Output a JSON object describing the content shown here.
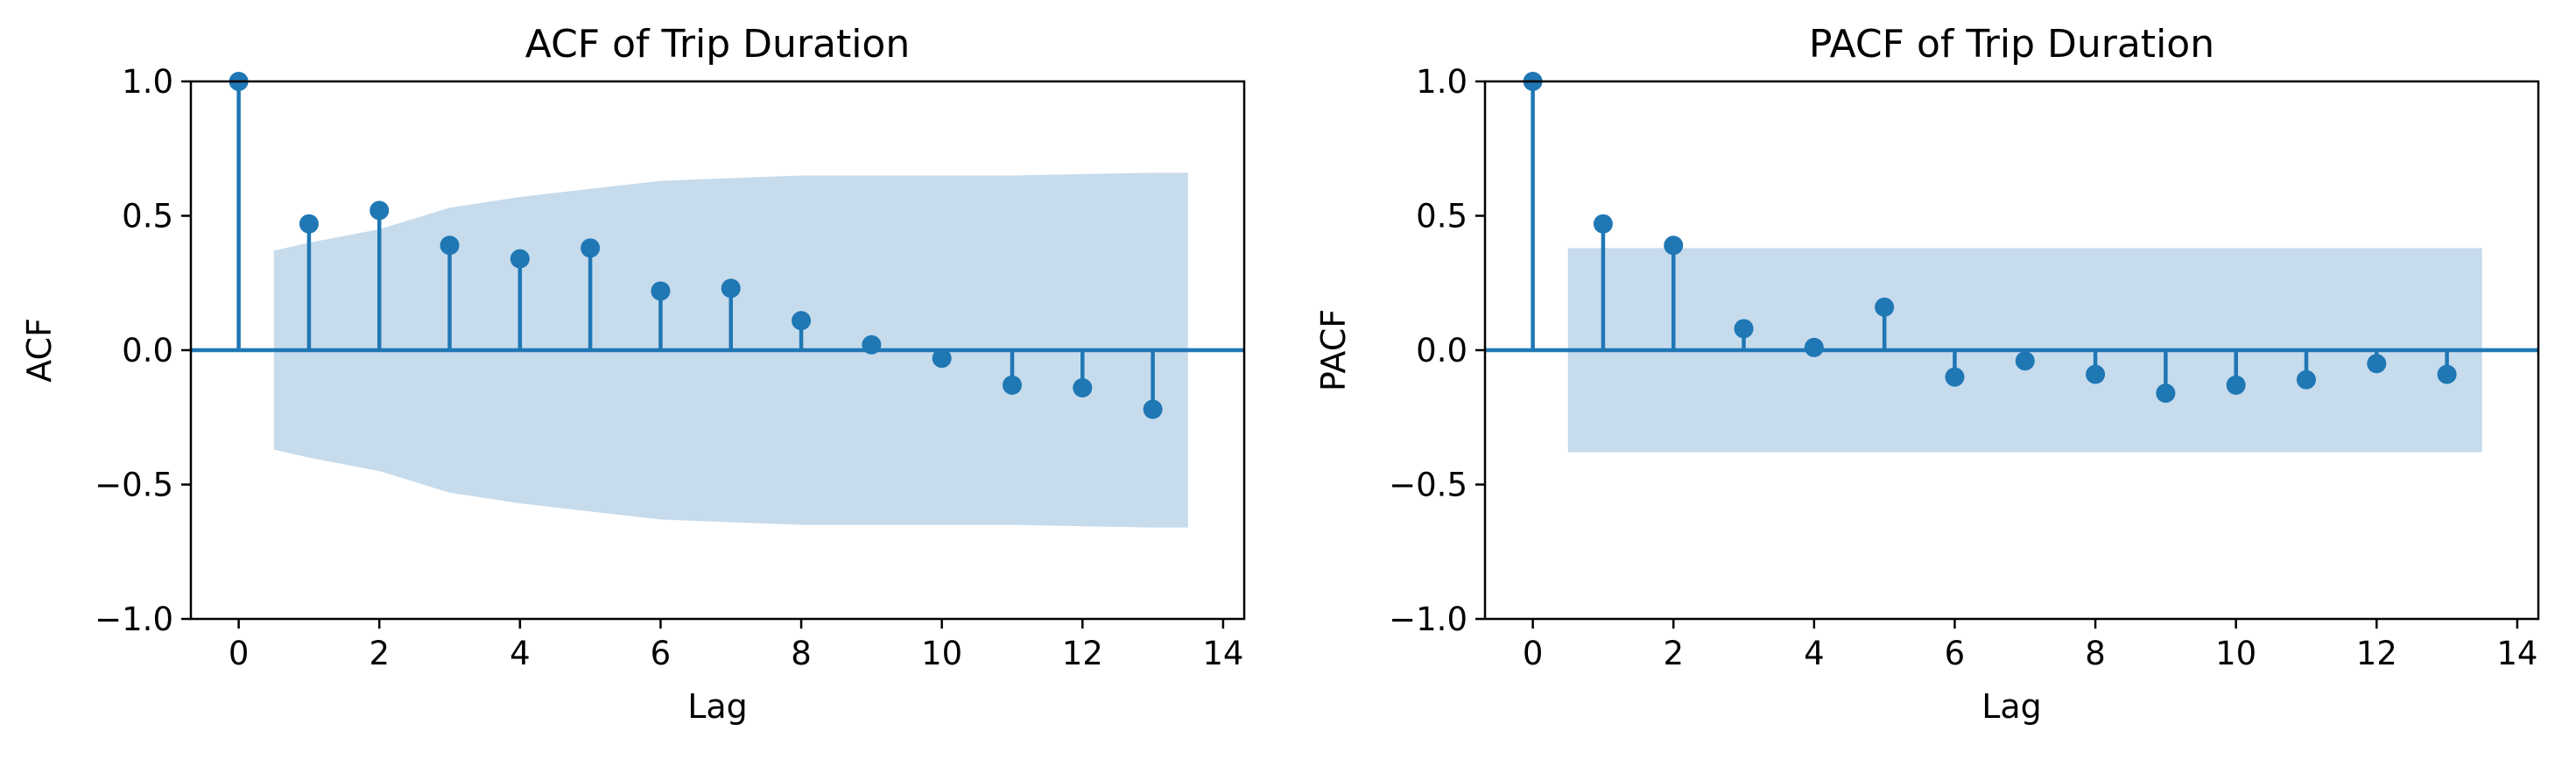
{
  "colors": {
    "series": "#1f77b4",
    "band": "#c6dbec",
    "axis": "#000000"
  },
  "chart_data": [
    {
      "type": "stem",
      "title": "ACF of Trip Duration",
      "xlabel": "Lag",
      "ylabel": "ACF",
      "xlim": [
        -0.68,
        14.3
      ],
      "ylim": [
        -1.0,
        1.0
      ],
      "xticks": [
        0,
        2,
        4,
        6,
        8,
        10,
        12,
        14
      ],
      "yticks": [
        -1.0,
        -0.5,
        0.0,
        0.5,
        1.0
      ],
      "xtick_labels": [
        "0",
        "2",
        "4",
        "6",
        "8",
        "10",
        "12",
        "14"
      ],
      "ytick_labels": [
        "−1.0",
        "−0.5",
        "0.0",
        "0.5",
        "1.0"
      ],
      "grid": false,
      "x": [
        0,
        1,
        2,
        3,
        4,
        5,
        6,
        7,
        8,
        9,
        10,
        11,
        12,
        13
      ],
      "values": [
        1.0,
        0.47,
        0.52,
        0.39,
        0.34,
        0.38,
        0.22,
        0.23,
        0.11,
        0.02,
        -0.03,
        -0.13,
        -0.14,
        -0.22
      ],
      "confidence_band": {
        "x": [
          0.5,
          1,
          2,
          3,
          4,
          5,
          6,
          7,
          8,
          9,
          10,
          11,
          12,
          13,
          13.5
        ],
        "upper": [
          0.37,
          0.4,
          0.45,
          0.53,
          0.57,
          0.6,
          0.63,
          0.64,
          0.65,
          0.65,
          0.65,
          0.65,
          0.655,
          0.66,
          0.66
        ],
        "lower": [
          -0.37,
          -0.4,
          -0.45,
          -0.53,
          -0.57,
          -0.6,
          -0.63,
          -0.64,
          -0.65,
          -0.65,
          -0.65,
          -0.65,
          -0.655,
          -0.66,
          -0.66
        ]
      }
    },
    {
      "type": "stem",
      "title": "PACF of Trip Duration",
      "xlabel": "Lag",
      "ylabel": "PACF",
      "xlim": [
        -0.68,
        14.3
      ],
      "ylim": [
        -1.0,
        1.0
      ],
      "xticks": [
        0,
        2,
        4,
        6,
        8,
        10,
        12,
        14
      ],
      "yticks": [
        -1.0,
        -0.5,
        0.0,
        0.5,
        1.0
      ],
      "xtick_labels": [
        "0",
        "2",
        "4",
        "6",
        "8",
        "10",
        "12",
        "14"
      ],
      "ytick_labels": [
        "−1.0",
        "−0.5",
        "0.0",
        "0.5",
        "1.0"
      ],
      "grid": false,
      "x": [
        0,
        1,
        2,
        3,
        4,
        5,
        6,
        7,
        8,
        9,
        10,
        11,
        12,
        13
      ],
      "values": [
        1.0,
        0.47,
        0.39,
        0.08,
        0.01,
        0.16,
        -0.1,
        -0.04,
        -0.09,
        -0.16,
        -0.13,
        -0.11,
        -0.05,
        -0.09
      ],
      "confidence_band": {
        "x": [
          0.5,
          13.5
        ],
        "upper": [
          0.38,
          0.38
        ],
        "lower": [
          -0.38,
          -0.38
        ]
      }
    }
  ]
}
